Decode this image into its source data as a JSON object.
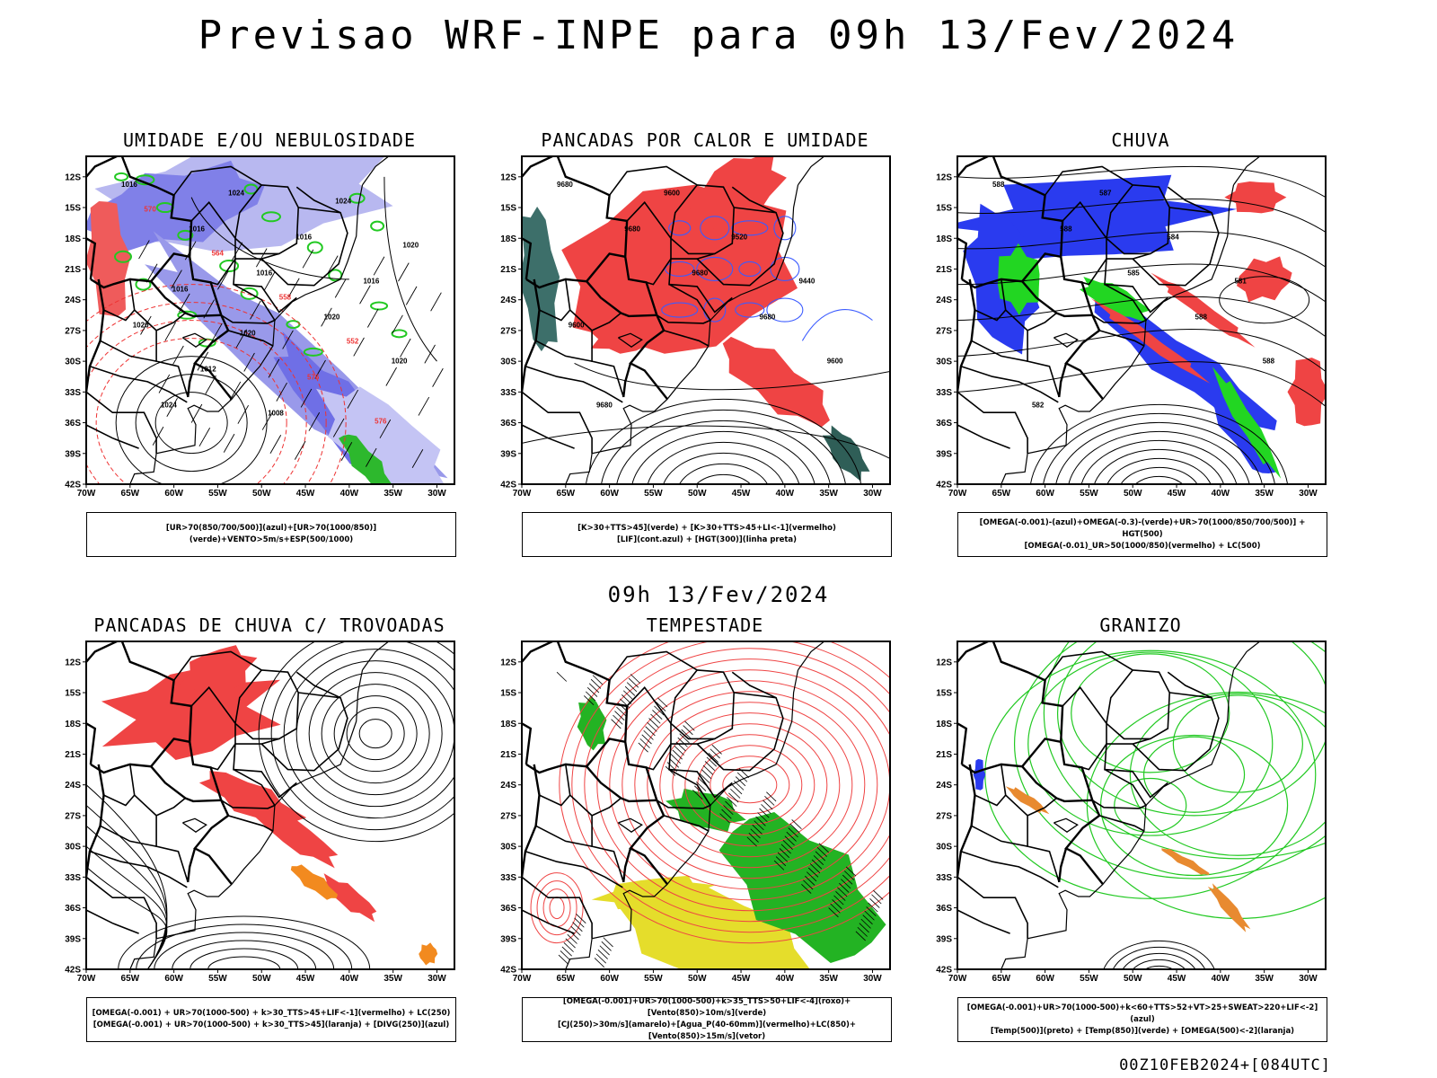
{
  "title": "Previsao WRF-INPE  para 09h 13/Fev/2024",
  "mid_title": "09h 13/Fev/2024",
  "footer": "00Z10FEB2024+[084UTC]",
  "lat_ticks": [
    "12S",
    "15S",
    "18S",
    "21S",
    "24S",
    "27S",
    "30S",
    "33S",
    "36S",
    "39S",
    "42S"
  ],
  "lon_ticks": [
    "70W",
    "65W",
    "60W",
    "55W",
    "50W",
    "45W",
    "40W",
    "35W",
    "30W"
  ],
  "panels": [
    {
      "id": "umidade",
      "title": "UMIDADE E/OU NEBULOSIDADE",
      "legend": [
        "[UR>70(850/700/500)](azul)+[UR>70(1000/850)](verde)+VENTO>5m/s+ESP(500/1000)"
      ],
      "contour_labels": [
        "1016",
        "1016",
        "1016",
        "1020",
        "1020",
        "1024",
        "1024",
        "1016",
        "1016",
        "1020",
        "1012",
        "1008",
        "1024",
        "1020",
        "1016",
        "1020",
        "576",
        "576",
        "570",
        "564",
        "558",
        "552"
      ]
    },
    {
      "id": "pancadas-calor",
      "title": "PANCADAS POR CALOR E UMIDADE",
      "legend": [
        "[K>30+TTS>45](verde) + [K>30+TTS>45+LI<-1](vermelho)",
        "[LIF](cont.azul) + [HGT(300)](linha preta)"
      ],
      "contour_labels": [
        "9680",
        "9680",
        "9680",
        "9680",
        "9600",
        "9680",
        "9600",
        "9520",
        "9440",
        "9600"
      ]
    },
    {
      "id": "chuva",
      "title": "CHUVA",
      "legend": [
        "[OMEGA(-0.001)-(azul)+OMEGA(-0.3)-(verde)+UR>70(1000/850/700/500)] + HGT(500)",
        "[OMEGA(-0.01)_UR>50(1000/850)(vermelho) + LC(500)"
      ],
      "contour_labels": [
        "588",
        "588",
        "585",
        "588",
        "588",
        "582",
        "587",
        "584",
        "581"
      ]
    },
    {
      "id": "pancadas-trovoadas",
      "title": "PANCADAS DE CHUVA C/ TROVOADAS",
      "legend": [
        "[OMEGA(-0.001) + UR>70(1000-500) + k>30_TTS>45+LIF<-1](vermelho) + LC(250)",
        "[OMEGA(-0.001) + UR>70(1000-500) + k>30_TTS>45](laranja) + [DIVG(250)](azul)"
      ],
      "contour_labels": []
    },
    {
      "id": "tempestade",
      "title": "TEMPESTADE",
      "legend": [
        "[OMEGA(-0.001)+UR>70(1000-500)+k>35_TTS>50+LIF<-4](roxo)+[Vento(850)>10m/s](verde)",
        "[CJ(250)>30m/s](amarelo)+[Agua_P(40-60mm)](vermelho)+LC(850)+[Vento(850)>15m/s](vetor)"
      ],
      "contour_labels": []
    },
    {
      "id": "granizo",
      "title": "GRANIZO",
      "legend": [
        "[OMEGA(-0.001)+UR>70(1000-500)+k<60+TTS>52+VT>25+SWEAT>220+LIF<-2](azul)",
        "[Temp(500)](preto) + [Temp(850)](verde) + [OMEGA(500)<-2](laranja)"
      ],
      "contour_labels": []
    }
  ]
}
